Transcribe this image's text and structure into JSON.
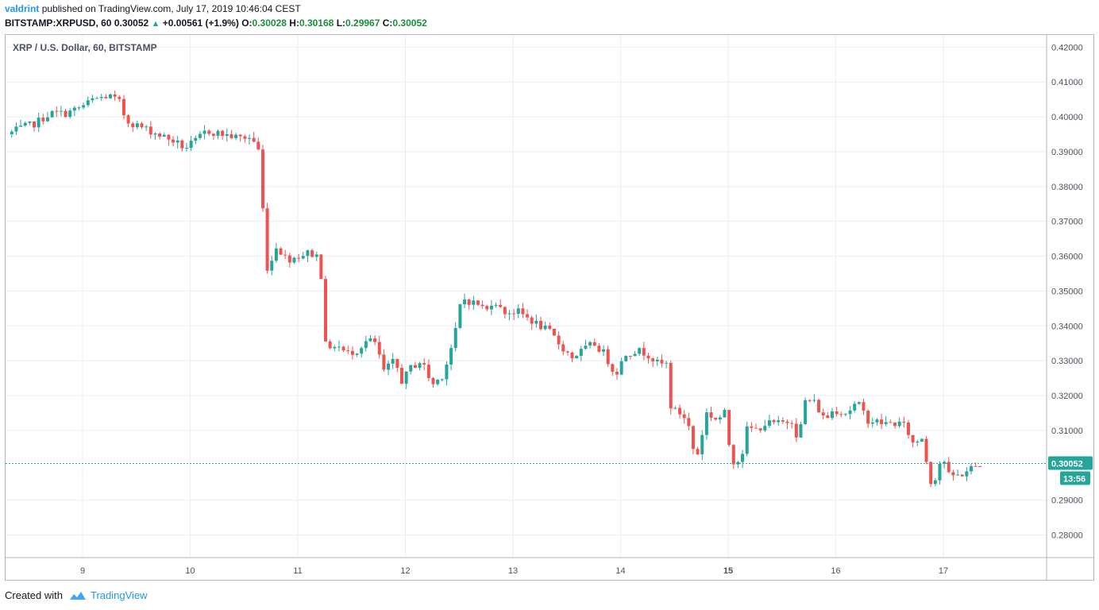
{
  "header": {
    "author": "valdrint",
    "published_text": "published on TradingView.com, July 17, 2019 10:46:04 CEST",
    "symbol": "BITSTAMP:XRPUSD, 60",
    "last_price": "0.30052",
    "change": "+0.00561 (+1.9%)",
    "open_label": "O:",
    "open": "0.30028",
    "high_label": "H:",
    "high": "0.30168",
    "low_label": "L:",
    "low": "0.29967",
    "close_label": "C:",
    "close": "0.30052"
  },
  "footer": {
    "created_with": "Created with",
    "brand": "TradingView"
  },
  "colors": {
    "up": "#26a69a",
    "down": "#ef5350",
    "grid": "#e9eff3",
    "axis_text": "#4c525e",
    "price_line": "#26a69a"
  },
  "chart_data": {
    "type": "candlestick",
    "title": "XRP / U.S. Dollar, 60, BITSTAMP",
    "ylim": [
      0.2735,
      0.4235
    ],
    "y_ticks": [
      "0.42000",
      "0.41000",
      "0.40000",
      "0.39000",
      "0.38000",
      "0.37000",
      "0.36000",
      "0.35000",
      "0.34000",
      "0.33000",
      "0.32000",
      "0.31000",
      "0.29000",
      "0.28000"
    ],
    "x_ticks": [
      {
        "label": "9",
        "t": 0,
        "bold": false
      },
      {
        "label": "10",
        "t": 1,
        "bold": false
      },
      {
        "label": "11",
        "t": 2,
        "bold": false
      },
      {
        "label": "12",
        "t": 3,
        "bold": false
      },
      {
        "label": "13",
        "t": 4,
        "bold": false
      },
      {
        "label": "14",
        "t": 5,
        "bold": false
      },
      {
        "label": "15",
        "t": 6,
        "bold": true
      },
      {
        "label": "16",
        "t": 7,
        "bold": false
      },
      {
        "label": "17",
        "t": 8,
        "bold": false
      }
    ],
    "x_start": -0.7,
    "x_end": 8.95,
    "current_price": 0.30052,
    "current_price_label": "0.30052",
    "countdown": "13:56",
    "anchors": [
      [
        -0.7,
        0.395
      ],
      [
        -0.55,
        0.397
      ],
      [
        -0.45,
        0.398
      ],
      [
        -0.3,
        0.401
      ],
      [
        -0.15,
        0.401
      ],
      [
        0.0,
        0.403
      ],
      [
        0.1,
        0.405
      ],
      [
        0.25,
        0.406
      ],
      [
        0.35,
        0.404
      ],
      [
        0.4,
        0.399
      ],
      [
        0.55,
        0.397
      ],
      [
        0.7,
        0.395
      ],
      [
        0.85,
        0.393
      ],
      [
        0.95,
        0.391
      ],
      [
        1.05,
        0.393
      ],
      [
        1.15,
        0.396
      ],
      [
        1.3,
        0.395
      ],
      [
        1.45,
        0.394
      ],
      [
        1.55,
        0.394
      ],
      [
        1.63,
        0.392
      ],
      [
        1.66,
        0.378
      ],
      [
        1.7,
        0.366
      ],
      [
        1.72,
        0.355
      ],
      [
        1.8,
        0.363
      ],
      [
        1.9,
        0.359
      ],
      [
        2.0,
        0.36
      ],
      [
        2.1,
        0.361
      ],
      [
        2.18,
        0.36
      ],
      [
        2.22,
        0.354
      ],
      [
        2.27,
        0.331
      ],
      [
        2.35,
        0.335
      ],
      [
        2.45,
        0.332
      ],
      [
        2.55,
        0.333
      ],
      [
        2.65,
        0.336
      ],
      [
        2.72,
        0.335
      ],
      [
        2.8,
        0.327
      ],
      [
        2.9,
        0.33
      ],
      [
        2.97,
        0.324
      ],
      [
        3.05,
        0.328
      ],
      [
        3.15,
        0.33
      ],
      [
        3.25,
        0.323
      ],
      [
        3.35,
        0.326
      ],
      [
        3.42,
        0.333
      ],
      [
        3.48,
        0.34
      ],
      [
        3.52,
        0.348
      ],
      [
        3.6,
        0.347
      ],
      [
        3.7,
        0.346
      ],
      [
        3.75,
        0.344
      ],
      [
        3.82,
        0.348
      ],
      [
        3.9,
        0.344
      ],
      [
        4.05,
        0.344
      ],
      [
        4.15,
        0.342
      ],
      [
        4.25,
        0.34
      ],
      [
        4.35,
        0.338
      ],
      [
        4.45,
        0.334
      ],
      [
        4.55,
        0.331
      ],
      [
        4.65,
        0.333
      ],
      [
        4.75,
        0.335
      ],
      [
        4.85,
        0.332
      ],
      [
        4.95,
        0.326
      ],
      [
        5.05,
        0.332
      ],
      [
        5.15,
        0.333
      ],
      [
        5.25,
        0.332
      ],
      [
        5.35,
        0.329
      ],
      [
        5.43,
        0.329
      ],
      [
        5.47,
        0.316
      ],
      [
        5.55,
        0.315
      ],
      [
        5.62,
        0.313
      ],
      [
        5.7,
        0.301
      ],
      [
        5.8,
        0.315
      ],
      [
        5.9,
        0.313
      ],
      [
        5.97,
        0.315
      ],
      [
        6.03,
        0.301
      ],
      [
        6.12,
        0.302
      ],
      [
        6.18,
        0.311
      ],
      [
        6.25,
        0.31
      ],
      [
        6.35,
        0.312
      ],
      [
        6.48,
        0.312
      ],
      [
        6.6,
        0.313
      ],
      [
        6.65,
        0.307
      ],
      [
        6.72,
        0.319
      ],
      [
        6.8,
        0.318
      ],
      [
        6.9,
        0.313
      ],
      [
        6.98,
        0.316
      ],
      [
        7.1,
        0.315
      ],
      [
        7.2,
        0.318
      ],
      [
        7.3,
        0.313
      ],
      [
        7.45,
        0.312
      ],
      [
        7.6,
        0.312
      ],
      [
        7.65,
        0.311
      ],
      [
        7.72,
        0.306
      ],
      [
        7.8,
        0.308
      ],
      [
        7.85,
        0.3
      ],
      [
        7.9,
        0.293
      ],
      [
        7.95,
        0.3
      ],
      [
        8.0,
        0.302
      ],
      [
        8.05,
        0.297
      ],
      [
        8.15,
        0.297
      ],
      [
        8.25,
        0.299
      ],
      [
        8.35,
        0.30052
      ]
    ]
  }
}
